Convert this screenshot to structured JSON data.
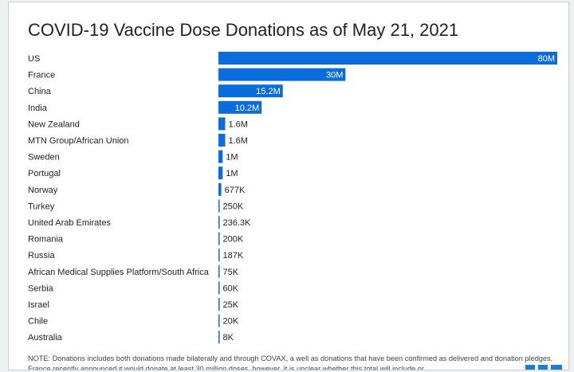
{
  "title": "COVID-19 Vaccine Dose Donations as of May 21, 2021",
  "note": "NOTE: Donations includes both donations made bilaterally and through COVAX, a well as donations that have been confirmed as delivered and donation pledges. France recently announced it would donate at least 30 million doses, however, it is unclear whether this total will include or",
  "colors": {
    "bar": "#0a6ddb",
    "label_inside": "#ffffff",
    "label_outside": "#222222"
  },
  "chart_data": {
    "type": "bar",
    "orientation": "horizontal",
    "categories": [
      "US",
      "France",
      "China",
      "India",
      "New Zealand",
      "MTN Group/African Union",
      "Sweden",
      "Portugal",
      "Norway",
      "Turkey",
      "United Arab Emirates",
      "Romania",
      "Russia",
      "African Medical Supplies Platform/South Africa",
      "Serbia",
      "Israel",
      "Chile",
      "Australia"
    ],
    "values": [
      80000000,
      30000000,
      15200000,
      10200000,
      1600000,
      1600000,
      1000000,
      1000000,
      677000,
      250000,
      236300,
      200000,
      187000,
      75000,
      60000,
      25000,
      20000,
      8000
    ],
    "value_labels": [
      "80M",
      "30M",
      "15.2M",
      "10.2M",
      "1.6M",
      "1.6M",
      "1M",
      "1M",
      "677K",
      "250K",
      "236.3K",
      "200K",
      "187K",
      "75K",
      "60K",
      "25K",
      "20K",
      "8K"
    ],
    "xlim": [
      0,
      80000000
    ],
    "grid": false,
    "legend": "none"
  }
}
